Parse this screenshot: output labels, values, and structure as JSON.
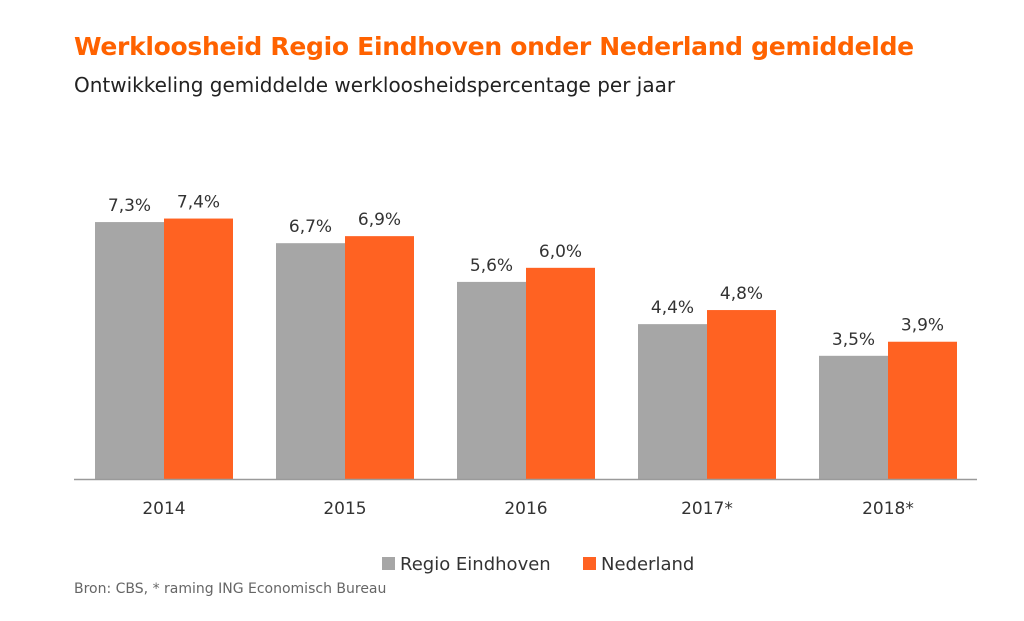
{
  "title": "Werkloosheid Regio Eindhoven onder Nederland gemiddelde",
  "subtitle": "Ontwikkeling gemiddelde werkloosheidspercentage per jaar",
  "source": "Bron: CBS, * raming ING Economisch Bureau",
  "colors": {
    "title": "#ff6200",
    "regio": "#a6a6a6",
    "nederland": "#ff6222"
  },
  "chart_data": {
    "type": "bar",
    "categories": [
      "2014",
      "2015",
      "2016",
      "2017*",
      "2018*"
    ],
    "series": [
      {
        "name": "Regio Eindhoven",
        "values": [
          7.3,
          6.7,
          5.6,
          4.4,
          3.5
        ],
        "labels": [
          "7,3%",
          "6,7%",
          "5,6%",
          "4,4%",
          "3,5%"
        ]
      },
      {
        "name": "Nederland",
        "values": [
          7.4,
          6.9,
          6.0,
          4.8,
          3.9
        ],
        "labels": [
          "7,4%",
          "6,9%",
          "6,0%",
          "4,8%",
          "3,9%"
        ]
      }
    ],
    "ylim": [
      0,
      10.2
    ],
    "grid": false,
    "legend": "bottom-center"
  }
}
